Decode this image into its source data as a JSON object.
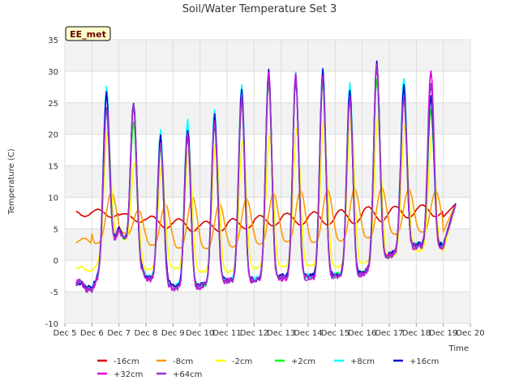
{
  "chart_data": {
    "type": "line",
    "title": "Soil/Water Temperature Set 3",
    "xlabel": "Time",
    "ylabel": "Temperature (C)",
    "badge": "EE_met",
    "ylim": [
      -10,
      35
    ],
    "yticks": [
      -10,
      -5,
      0,
      5,
      10,
      15,
      20,
      25,
      30,
      35
    ],
    "xlim": [
      5,
      20
    ],
    "xticks": [
      {
        "x": 5,
        "label": "Dec 5"
      },
      {
        "x": 6,
        "label": "Dec 6"
      },
      {
        "x": 7,
        "label": "Dec 7"
      },
      {
        "x": 8,
        "label": "Dec 8"
      },
      {
        "x": 9,
        "label": "Dec 9"
      },
      {
        "x": 10,
        "label": "Dec 10"
      },
      {
        "x": 11,
        "label": "Dec 11"
      },
      {
        "x": 12,
        "label": "Dec 12"
      },
      {
        "x": 13,
        "label": "Dec 13"
      },
      {
        "x": 14,
        "label": "Dec 14"
      },
      {
        "x": 15,
        "label": "Dec 15"
      },
      {
        "x": 16,
        "label": "Dec 16"
      },
      {
        "x": 17,
        "label": "Dec 17"
      },
      {
        "x": 18,
        "label": "Dec 18"
      },
      {
        "x": 19,
        "label": "Dec 19"
      },
      {
        "x": 20,
        "label": "Dec 20"
      }
    ],
    "grid": true,
    "legend_position": "bottom",
    "days": [
      5,
      6,
      7,
      8,
      9,
      10,
      11,
      12,
      13,
      14,
      15,
      16,
      17,
      18
    ],
    "series": [
      {
        "name": "-16cm",
        "color": "#dd0000",
        "daily_min": [
          7.4,
          6.8,
          6.8,
          5.7,
          4.8,
          4.5,
          4.6,
          5.1,
          5.6,
          5.6,
          5.6,
          5.9,
          6.3,
          6.9
        ],
        "daily_max": [
          8.2,
          8.1,
          7.4,
          7.0,
          6.6,
          6.2,
          6.6,
          7.1,
          7.5,
          7.7,
          8.0,
          8.5,
          8.6,
          8.8
        ]
      },
      {
        "name": "-8cm",
        "color": "#ff9900",
        "daily_min": [
          3.0,
          2.2,
          4.7,
          2.5,
          2.0,
          1.8,
          2.0,
          2.5,
          3.0,
          2.8,
          3.0,
          3.5,
          4.0,
          4.5
        ],
        "daily_max": [
          3.5,
          10.8,
          8.0,
          8.8,
          10.0,
          9.0,
          9.8,
          10.6,
          11.0,
          11.2,
          11.4,
          11.5,
          11.3,
          11.0
        ]
      },
      {
        "name": "-2cm",
        "color": "#ffff00",
        "daily_min": [
          -1.5,
          -1.8,
          4.5,
          -1.5,
          -1.2,
          -1.8,
          -1.8,
          -1.2,
          -1.0,
          -0.8,
          -1.0,
          -0.5,
          0.5,
          1.5
        ],
        "daily_max": [
          -1.0,
          20.5,
          15.5,
          15.0,
          18.0,
          18.5,
          19.0,
          20.0,
          21.0,
          22.0,
          23.0,
          22.5,
          21.5,
          20.0
        ]
      },
      {
        "name": "+2cm",
        "color": "#00ff00",
        "daily_min": [
          -4.2,
          -4.5,
          5.0,
          -2.5,
          -4.0,
          -4.0,
          -3.2,
          -3.0,
          -2.5,
          -2.5,
          -2.3,
          -2.0,
          1.0,
          2.5
        ],
        "daily_max": [
          -3.5,
          24.0,
          22.0,
          18.0,
          20.0,
          22.0,
          25.0,
          28.0,
          28.5,
          28.5,
          26.0,
          29.0,
          26.0,
          24.0
        ]
      },
      {
        "name": "+8cm",
        "color": "#00ffff",
        "daily_min": [
          -4.0,
          -4.3,
          5.0,
          -2.5,
          -3.8,
          -4.0,
          -3.0,
          -3.0,
          -2.5,
          -2.5,
          -2.3,
          -2.0,
          1.0,
          2.5
        ],
        "daily_max": [
          -3.5,
          27.5,
          25.0,
          20.5,
          22.0,
          24.0,
          28.0,
          30.0,
          29.5,
          30.5,
          28.0,
          31.5,
          29.0,
          26.0
        ]
      },
      {
        "name": "+16cm",
        "color": "#0000cc",
        "daily_min": [
          -4.0,
          -4.3,
          5.0,
          -2.5,
          -3.8,
          -4.0,
          -3.0,
          -3.0,
          -2.5,
          -2.5,
          -2.3,
          -2.0,
          1.0,
          2.5
        ],
        "daily_max": [
          -3.5,
          26.5,
          25.0,
          19.5,
          21.0,
          23.0,
          27.0,
          30.0,
          29.0,
          30.0,
          27.0,
          31.5,
          27.5,
          26.0
        ]
      },
      {
        "name": "+32cm",
        "color": "#dd00dd",
        "daily_min": [
          -4.5,
          -4.8,
          4.8,
          -2.8,
          -4.5,
          -4.2,
          -3.2,
          -3.2,
          -2.8,
          -2.8,
          -2.6,
          -2.2,
          0.8,
          2.2
        ],
        "daily_max": [
          -3.0,
          24.5,
          25.0,
          18.5,
          20.0,
          22.0,
          26.0,
          29.5,
          29.5,
          29.0,
          26.0,
          31.0,
          26.0,
          30.5
        ]
      },
      {
        "name": "+64cm",
        "color": "#9933cc",
        "daily_min": [
          -4.5,
          -4.8,
          4.8,
          -2.8,
          -4.5,
          -4.2,
          -3.2,
          -3.2,
          -2.8,
          -2.8,
          -2.6,
          -2.2,
          0.8,
          2.2
        ],
        "daily_max": [
          -3.0,
          24.0,
          24.5,
          18.5,
          19.5,
          21.5,
          26.0,
          29.0,
          29.0,
          29.0,
          26.0,
          31.0,
          26.0,
          28.0
        ]
      }
    ],
    "end_value": 9.0
  }
}
